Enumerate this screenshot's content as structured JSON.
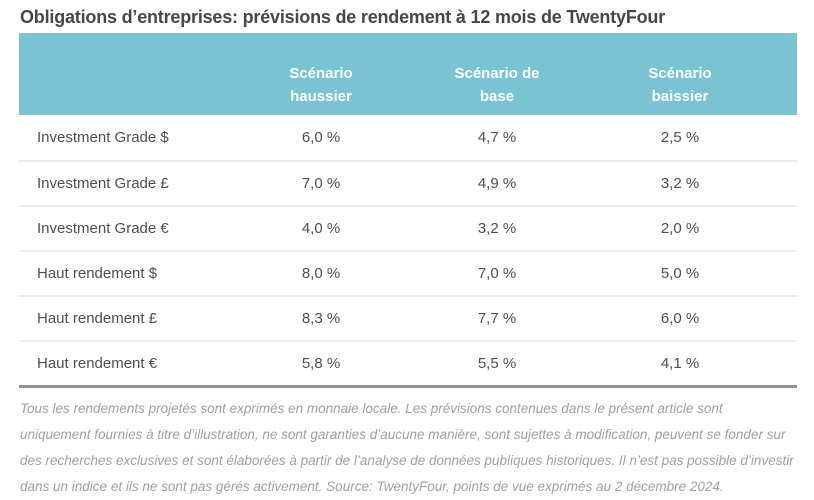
{
  "title": "Obligations d’entreprises: prévisions de rendement à 12 mois de TwentyFour",
  "colors": {
    "header_bg": "#79c3d2",
    "header_text": "#ffffff",
    "body_text": "#4f4f4f",
    "title_text": "#474747",
    "row_divider": "#e9e9e9",
    "table_bottom_border": "#949494",
    "footnote_text": "#a0a0a0"
  },
  "table": {
    "columns": [
      {
        "line1": "Scénario",
        "line2": "haussier"
      },
      {
        "line1": "Scénario de",
        "line2": "base"
      },
      {
        "line1": "Scénario",
        "line2": "baissier"
      }
    ],
    "rows": [
      {
        "label": "Investment Grade $",
        "values": [
          "6,0 %",
          "4,7 %",
          "2,5 %"
        ]
      },
      {
        "label": "Investment Grade £",
        "values": [
          "7,0 %",
          "4,9 %",
          "3,2 %"
        ]
      },
      {
        "label": "Investment Grade €",
        "values": [
          "4,0 %",
          "3,2 %",
          "2,0 %"
        ]
      },
      {
        "label": "Haut rendement $",
        "values": [
          "8,0 %",
          "7,0 %",
          "5,0 %"
        ]
      },
      {
        "label": "Haut rendement £",
        "values": [
          "8,3 %",
          "7,7 %",
          "6,0 %"
        ]
      },
      {
        "label": "Haut rendement €",
        "values": [
          "5,8 %",
          "5,5 %",
          "4,1 %"
        ]
      }
    ]
  },
  "footnote": "Tous les rendements projetés sont exprimés en monnaie locale. Les prévisions contenues dans le présent article sont uniquement fournies à titre d’illustration, ne sont garanties d’aucune manière, sont sujettes à modification, peuvent se fonder sur des recherches exclusives et sont élaborées à partir de l’analyse de données publiques historiques. Il n’est pas possible d’investir dans un indice et ils ne sont pas gérés activement. Source: TwentyFour, points de vue exprimés au 2 décembre 2024.",
  "chart_data": {
    "type": "table",
    "title": "Obligations d’entreprises: prévisions de rendement à 12 mois de TwentyFour",
    "columns": [
      "Scénario haussier",
      "Scénario de base",
      "Scénario baissier"
    ],
    "row_labels": [
      "Investment Grade $",
      "Investment Grade £",
      "Investment Grade €",
      "Haut rendement $",
      "Haut rendement £",
      "Haut rendement €"
    ],
    "values_pct": [
      [
        6.0,
        4.7,
        2.5
      ],
      [
        7.0,
        4.9,
        3.2
      ],
      [
        4.0,
        3.2,
        2.0
      ],
      [
        8.0,
        7.0,
        5.0
      ],
      [
        8.3,
        7.7,
        6.0
      ],
      [
        5.8,
        5.5,
        4.1
      ]
    ],
    "unit": "%",
    "decimal_separator": ",",
    "source_note": "Source: TwentyFour, points de vue exprimés au 2 décembre 2024."
  }
}
